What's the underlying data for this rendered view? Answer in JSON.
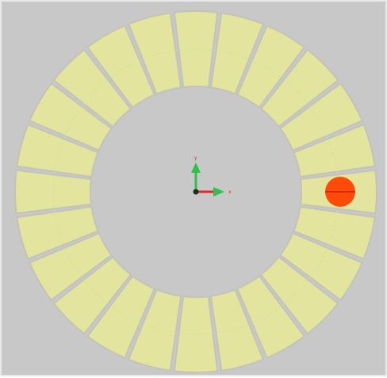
{
  "viewport": {
    "background": "#c8c8c8",
    "border_color": "#e9e9e9"
  },
  "ring": {
    "segment_count": 24,
    "segment_color": "#e3e49d",
    "gap_color": "#c3c3b8",
    "guide_color": "#c3e5a6"
  },
  "marker": {
    "color": "#ff4a0a",
    "line_color": "#c62200"
  },
  "axis_gizmo": {
    "x_axis": {
      "label": "x",
      "color": "#e02a2a",
      "icon": "x-axis-arrow-icon"
    },
    "y_axis": {
      "label": "y",
      "color": "#2fc24a",
      "icon": "y-axis-arrow-icon"
    },
    "origin_icon": "origin-point-icon"
  }
}
